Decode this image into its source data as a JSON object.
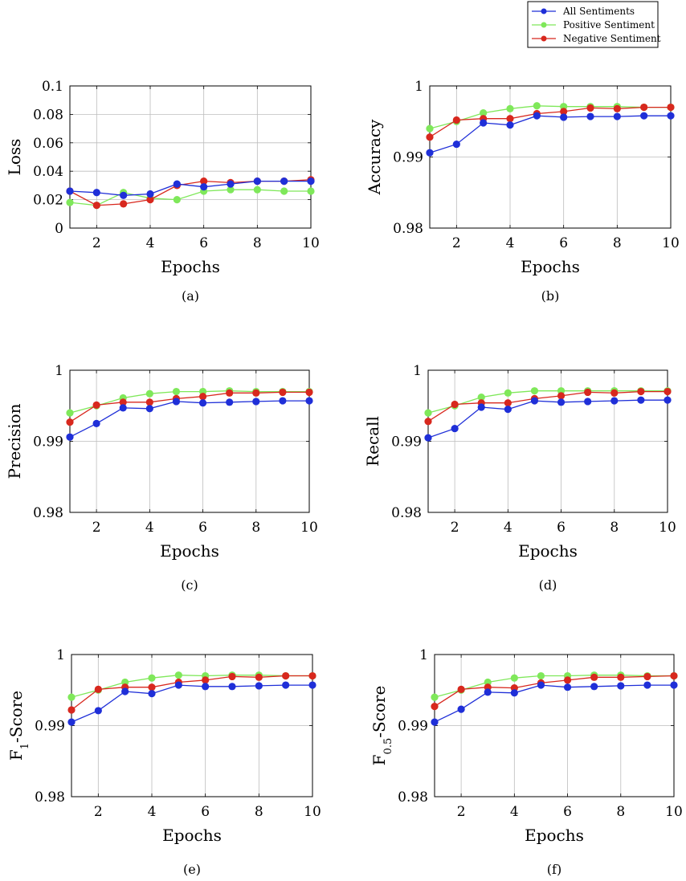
{
  "legend": {
    "entries": [
      {
        "name": "All Sentiments",
        "color": "#1f2fd8"
      },
      {
        "name": "Positive Sentiment",
        "color": "#7fe85a"
      },
      {
        "name": "Negative Sentiment",
        "color": "#d8281e"
      }
    ]
  },
  "chart_data": [
    {
      "type": "line",
      "caption": "(a)",
      "xlabel": "Epochs",
      "ylabel": "Loss",
      "ylabel_parts": [
        {
          "t": "Loss"
        }
      ],
      "xlim": [
        1,
        10
      ],
      "ylim": [
        0,
        0.1
      ],
      "xticks": [
        2,
        4,
        6,
        8,
        10
      ],
      "xtick_labels": [
        "2",
        "4",
        "6",
        "8",
        "10"
      ],
      "yticks": [
        0,
        0.02,
        0.04,
        0.06,
        0.08,
        0.1
      ],
      "ytick_labels": [
        "0",
        "0.02",
        "0.04",
        "0.06",
        "0.08",
        "0.1"
      ],
      "grid": true,
      "x": [
        1,
        2,
        3,
        4,
        5,
        6,
        7,
        8,
        9,
        10
      ],
      "series": [
        {
          "name": "All Sentiments",
          "values": [
            0.026,
            0.025,
            0.023,
            0.024,
            0.031,
            0.029,
            0.031,
            0.033,
            0.033,
            0.033
          ]
        },
        {
          "name": "Positive Sentiment",
          "values": [
            0.018,
            0.016,
            0.025,
            0.021,
            0.02,
            0.026,
            0.027,
            0.027,
            0.026,
            0.026
          ]
        },
        {
          "name": "Negative Sentiment",
          "values": [
            0.026,
            0.016,
            0.017,
            0.02,
            0.03,
            0.033,
            0.032,
            0.033,
            0.033,
            0.034
          ]
        }
      ]
    },
    {
      "type": "line",
      "caption": "(b)",
      "xlabel": "Epochs",
      "ylabel": "Accuracy",
      "ylabel_parts": [
        {
          "t": "Accuracy"
        }
      ],
      "xlim": [
        1,
        10
      ],
      "ylim": [
        0.98,
        1
      ],
      "xticks": [
        2,
        4,
        6,
        8,
        10
      ],
      "xtick_labels": [
        "2",
        "4",
        "6",
        "8",
        "10"
      ],
      "yticks": [
        0.98,
        0.99,
        1
      ],
      "ytick_labels": [
        "0.98",
        "0.99",
        "1"
      ],
      "grid": true,
      "x": [
        1,
        2,
        3,
        4,
        5,
        6,
        7,
        8,
        9,
        10
      ],
      "series": [
        {
          "name": "All Sentiments",
          "values": [
            0.9906,
            0.9918,
            0.9948,
            0.9945,
            0.9958,
            0.9956,
            0.9957,
            0.9957,
            0.9958,
            0.9958
          ]
        },
        {
          "name": "Positive Sentiment",
          "values": [
            0.994,
            0.995,
            0.9962,
            0.9968,
            0.9972,
            0.9971,
            0.9971,
            0.9971,
            0.997,
            0.997
          ]
        },
        {
          "name": "Negative Sentiment",
          "values": [
            0.9928,
            0.9952,
            0.9954,
            0.9954,
            0.9961,
            0.9964,
            0.9969,
            0.9968,
            0.997,
            0.997
          ]
        }
      ]
    },
    {
      "type": "line",
      "caption": "(c)",
      "xlabel": "Epochs",
      "ylabel": "Precision",
      "ylabel_parts": [
        {
          "t": "Precision"
        }
      ],
      "xlim": [
        1,
        10
      ],
      "ylim": [
        0.98,
        1
      ],
      "xticks": [
        2,
        4,
        6,
        8,
        10
      ],
      "xtick_labels": [
        "2",
        "4",
        "6",
        "8",
        "10"
      ],
      "yticks": [
        0.98,
        0.99,
        1
      ],
      "ytick_labels": [
        "0.98",
        "0.99",
        "1"
      ],
      "grid": true,
      "x": [
        1,
        2,
        3,
        4,
        5,
        6,
        7,
        8,
        9,
        10
      ],
      "series": [
        {
          "name": "All Sentiments",
          "values": [
            0.9906,
            0.9925,
            0.9947,
            0.9946,
            0.9956,
            0.9954,
            0.9955,
            0.9956,
            0.9957,
            0.9957
          ]
        },
        {
          "name": "Positive Sentiment",
          "values": [
            0.994,
            0.995,
            0.9961,
            0.9967,
            0.997,
            0.997,
            0.9971,
            0.997,
            0.997,
            0.997
          ]
        },
        {
          "name": "Negative Sentiment",
          "values": [
            0.9927,
            0.9951,
            0.9955,
            0.9955,
            0.996,
            0.9963,
            0.9968,
            0.9968,
            0.9969,
            0.9969
          ]
        }
      ]
    },
    {
      "type": "line",
      "caption": "(d)",
      "xlabel": "Epochs",
      "ylabel": "Recall",
      "ylabel_parts": [
        {
          "t": "Recall"
        }
      ],
      "xlim": [
        1,
        10
      ],
      "ylim": [
        0.98,
        1
      ],
      "xticks": [
        2,
        4,
        6,
        8,
        10
      ],
      "xtick_labels": [
        "2",
        "4",
        "6",
        "8",
        "10"
      ],
      "yticks": [
        0.98,
        0.99,
        1
      ],
      "ytick_labels": [
        "0.98",
        "0.99",
        "1"
      ],
      "grid": true,
      "x": [
        1,
        2,
        3,
        4,
        5,
        6,
        7,
        8,
        9,
        10
      ],
      "series": [
        {
          "name": "All Sentiments",
          "values": [
            0.9905,
            0.9918,
            0.9948,
            0.9945,
            0.9957,
            0.9955,
            0.9956,
            0.9957,
            0.9958,
            0.9958
          ]
        },
        {
          "name": "Positive Sentiment",
          "values": [
            0.994,
            0.995,
            0.9962,
            0.9968,
            0.9971,
            0.9971,
            0.9971,
            0.9971,
            0.9971,
            0.9971
          ]
        },
        {
          "name": "Negative Sentiment",
          "values": [
            0.9928,
            0.9952,
            0.9954,
            0.9954,
            0.996,
            0.9964,
            0.9969,
            0.9968,
            0.997,
            0.997
          ]
        }
      ]
    },
    {
      "type": "line",
      "caption": "(e)",
      "xlabel": "Epochs",
      "ylabel": "F1-Score",
      "ylabel_parts": [
        {
          "t": "F"
        },
        {
          "t": "1",
          "sub": true
        },
        {
          "t": "-Score"
        }
      ],
      "xlim": [
        1,
        10
      ],
      "ylim": [
        0.98,
        1
      ],
      "xticks": [
        2,
        4,
        6,
        8,
        10
      ],
      "xtick_labels": [
        "2",
        "4",
        "6",
        "8",
        "10"
      ],
      "yticks": [
        0.98,
        0.99,
        1
      ],
      "ytick_labels": [
        "0.98",
        "0.99",
        "1"
      ],
      "grid": true,
      "x": [
        1,
        2,
        3,
        4,
        5,
        6,
        7,
        8,
        9,
        10
      ],
      "series": [
        {
          "name": "All Sentiments",
          "values": [
            0.9905,
            0.9921,
            0.9948,
            0.9945,
            0.9957,
            0.9955,
            0.9955,
            0.9956,
            0.9957,
            0.9957
          ]
        },
        {
          "name": "Positive Sentiment",
          "values": [
            0.994,
            0.995,
            0.9961,
            0.9967,
            0.9971,
            0.997,
            0.9971,
            0.9971,
            0.997,
            0.997
          ]
        },
        {
          "name": "Negative Sentiment",
          "values": [
            0.9922,
            0.9951,
            0.9954,
            0.9954,
            0.9961,
            0.9964,
            0.9969,
            0.9968,
            0.997,
            0.997
          ]
        }
      ]
    },
    {
      "type": "line",
      "caption": "(f)",
      "xlabel": "Epochs",
      "ylabel": "F0.5-Score",
      "ylabel_parts": [
        {
          "t": "F"
        },
        {
          "t": "0.5",
          "sub": true
        },
        {
          "t": "-Score"
        }
      ],
      "xlim": [
        1,
        10
      ],
      "ylim": [
        0.98,
        1
      ],
      "xticks": [
        2,
        4,
        6,
        8,
        10
      ],
      "xtick_labels": [
        "2",
        "4",
        "6",
        "8",
        "10"
      ],
      "yticks": [
        0.98,
        0.99,
        1
      ],
      "ytick_labels": [
        "0.98",
        "0.99",
        "1"
      ],
      "grid": true,
      "x": [
        1,
        2,
        3,
        4,
        5,
        6,
        7,
        8,
        9,
        10
      ],
      "series": [
        {
          "name": "All Sentiments",
          "values": [
            0.9905,
            0.9923,
            0.9947,
            0.9946,
            0.9957,
            0.9954,
            0.9955,
            0.9956,
            0.9957,
            0.9957
          ]
        },
        {
          "name": "Positive Sentiment",
          "values": [
            0.994,
            0.995,
            0.9961,
            0.9967,
            0.997,
            0.997,
            0.9971,
            0.9971,
            0.997,
            0.997
          ]
        },
        {
          "name": "Negative Sentiment",
          "values": [
            0.9927,
            0.9951,
            0.9954,
            0.9953,
            0.996,
            0.9964,
            0.9968,
            0.9968,
            0.9969,
            0.997
          ]
        }
      ]
    }
  ]
}
